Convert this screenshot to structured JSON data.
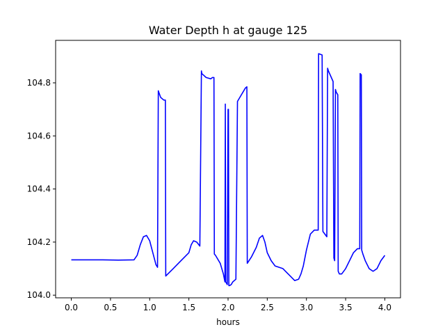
{
  "chart_data": {
    "type": "line",
    "title": "Water Depth h at gauge 125",
    "xlabel": "hours",
    "ylabel": "",
    "xlim": [
      -0.2,
      4.2
    ],
    "ylim": [
      103.99,
      104.96
    ],
    "xticks": [
      0.0,
      0.5,
      1.0,
      1.5,
      2.0,
      2.5,
      3.0,
      3.5,
      4.0
    ],
    "xtick_labels": [
      "0.0",
      "0.5",
      "1.0",
      "1.5",
      "2.0",
      "2.5",
      "3.0",
      "3.5",
      "4.0"
    ],
    "yticks": [
      104.0,
      104.2,
      104.4,
      104.6,
      104.8
    ],
    "ytick_labels": [
      "104.0",
      "104.2",
      "104.4",
      "104.6",
      "104.8"
    ],
    "grid": false,
    "legend": "none",
    "line_color": "#0000ff",
    "series": [
      {
        "x": [
          0.0,
          0.2,
          0.4,
          0.6,
          0.8,
          0.84,
          0.88,
          0.92,
          0.96,
          1.0,
          1.04,
          1.08,
          1.1,
          1.11,
          1.14,
          1.18,
          1.2,
          1.205,
          1.3,
          1.4,
          1.5,
          1.53,
          1.56,
          1.6,
          1.64,
          1.66,
          1.665,
          1.72,
          1.78,
          1.8,
          1.82,
          1.825,
          1.84,
          1.9,
          1.94,
          1.96,
          1.965,
          1.97,
          1.99,
          2.0,
          2.005,
          2.01,
          2.02,
          2.04,
          2.06,
          2.1,
          2.12,
          2.15,
          2.22,
          2.24,
          2.245,
          2.3,
          2.36,
          2.4,
          2.44,
          2.47,
          2.5,
          2.55,
          2.6,
          2.65,
          2.7,
          2.75,
          2.8,
          2.85,
          2.9,
          2.93,
          2.96,
          3.0,
          3.05,
          3.1,
          3.15,
          3.155,
          3.2,
          3.21,
          3.26,
          3.27,
          3.28,
          3.34,
          3.35,
          3.36,
          3.37,
          3.38,
          3.4,
          3.405,
          3.42,
          3.45,
          3.5,
          3.55,
          3.6,
          3.65,
          3.68,
          3.685,
          3.7,
          3.705,
          3.72,
          3.75,
          3.8,
          3.85,
          3.9,
          3.95,
          4.0
        ],
        "y": [
          104.133,
          104.133,
          104.133,
          104.132,
          104.133,
          104.15,
          104.19,
          104.22,
          104.225,
          104.205,
          104.16,
          104.115,
          104.105,
          104.77,
          104.745,
          104.735,
          104.735,
          104.072,
          104.1,
          104.13,
          104.16,
          104.19,
          104.205,
          104.2,
          104.185,
          104.845,
          104.835,
          104.82,
          104.815,
          104.82,
          104.82,
          104.155,
          104.15,
          104.12,
          104.08,
          104.05,
          104.72,
          104.05,
          104.04,
          104.7,
          104.7,
          104.036,
          104.036,
          104.04,
          104.05,
          104.06,
          104.73,
          104.745,
          104.78,
          104.785,
          104.12,
          104.145,
          104.18,
          104.215,
          104.225,
          104.2,
          104.16,
          104.13,
          104.11,
          104.105,
          104.1,
          104.085,
          104.07,
          104.055,
          104.06,
          104.08,
          104.11,
          104.17,
          104.23,
          104.245,
          104.245,
          104.91,
          104.905,
          104.24,
          104.22,
          104.855,
          104.845,
          104.805,
          104.14,
          104.13,
          104.775,
          104.765,
          104.755,
          104.09,
          104.08,
          104.08,
          104.1,
          104.13,
          104.16,
          104.175,
          104.175,
          104.835,
          104.83,
          104.17,
          104.155,
          104.13,
          104.1,
          104.09,
          104.1,
          104.13,
          104.15
        ]
      }
    ]
  }
}
